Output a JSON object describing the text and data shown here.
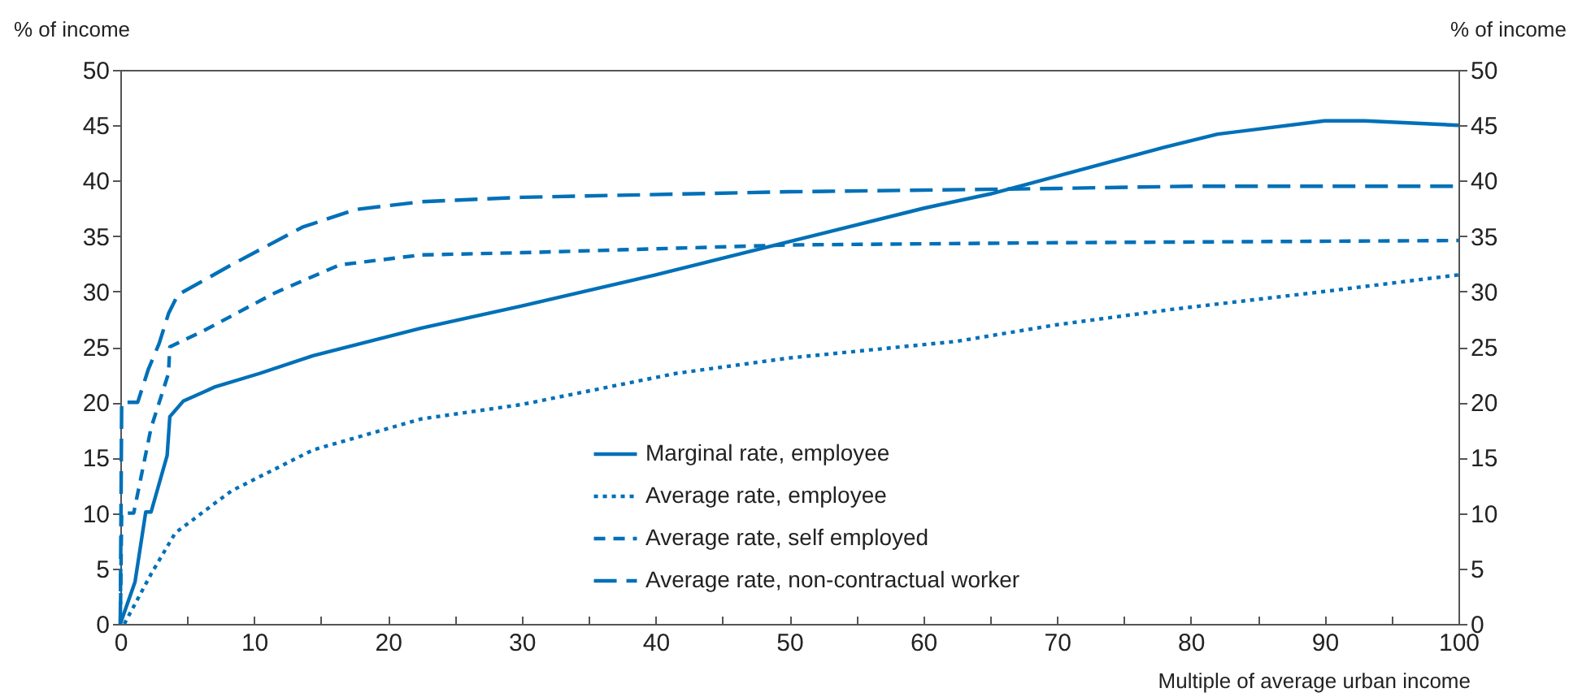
{
  "chart_data": {
    "type": "line",
    "ylabel": "% of income",
    "y2label": "% of income",
    "xlabel": "Multiple of average urban income",
    "xlim": [
      0,
      100
    ],
    "xticks": [
      0,
      {
        "value": 5,
        "label": null
      },
      10,
      {
        "value": 15,
        "label": null
      },
      20,
      {
        "value": 25,
        "label": null
      },
      30,
      {
        "value": 35,
        "label": null
      },
      40,
      {
        "value": 45,
        "label": null
      },
      50,
      {
        "value": 55,
        "label": null
      },
      60,
      {
        "value": 65,
        "label": null
      },
      70,
      {
        "value": 75,
        "label": null
      },
      80,
      {
        "value": 85,
        "label": null
      },
      90,
      {
        "value": 95,
        "label": null
      },
      100
    ],
    "ylim": [
      0,
      50
    ],
    "yticks": [
      0,
      5,
      10,
      15,
      20,
      25,
      30,
      35,
      40,
      45,
      50
    ],
    "y2lim": [
      0,
      50
    ],
    "y2ticks": [
      0,
      5,
      10,
      15,
      20,
      25,
      30,
      35,
      40,
      45,
      50
    ],
    "grid": false,
    "legend": "bottom",
    "marker": "none",
    "series": [
      {
        "name": "Marginal rate, employee",
        "color": "#0070b8",
        "line_style": "solid",
        "x": [
          0,
          1.1,
          1.9,
          2.3,
          3.5,
          3.7,
          4.7,
          7.1,
          10.4,
          14.4,
          22.5,
          30,
          40,
          50,
          60,
          65,
          70,
          78,
          82,
          90,
          93,
          100
        ],
        "values": [
          0,
          3.8,
          10.1,
          10.1,
          15.2,
          18.7,
          20.1,
          21.4,
          22.6,
          24.2,
          26.7,
          28.7,
          31.5,
          34.5,
          37.5,
          38.8,
          40.4,
          43,
          44.2,
          45.4,
          45.4,
          45
        ]
      },
      {
        "name": "Average rate, employee",
        "color": "#0070b8",
        "line_style": "dotted",
        "x": [
          0.3,
          2.3,
          4.1,
          8.3,
          14.4,
          22.5,
          30,
          41.5,
          50,
          62.5,
          70,
          78.7,
          90,
          100
        ],
        "values": [
          0,
          4.5,
          8.2,
          12,
          15.7,
          18.5,
          19.8,
          22.6,
          24,
          25.5,
          27,
          28.4,
          30,
          31.5
        ]
      },
      {
        "name": "Average rate, self employed",
        "color": "#0070b8",
        "line_style": "dashed",
        "x": [
          0,
          0.1,
          1,
          2.3,
          3.6,
          3.7,
          6.3,
          11.6,
          16.4,
          22.5,
          30,
          50,
          70,
          100
        ],
        "values": [
          0,
          10,
          10,
          17.7,
          22.6,
          25,
          26.5,
          29.9,
          32.4,
          33.3,
          33.5,
          34.2,
          34.4,
          34.6
        ]
      },
      {
        "name": "Average rate, non-contractual worker",
        "color": "#0070b8",
        "line_style": "dashed",
        "x": [
          0,
          0.1,
          1.3,
          2.1,
          2.9,
          3.6,
          4.3,
          8.3,
          13.6,
          17.6,
          22.5,
          30,
          50,
          70,
          80,
          100
        ],
        "values": [
          0,
          20,
          20,
          23,
          25.3,
          28,
          29.7,
          32.4,
          35.8,
          37.4,
          38.1,
          38.5,
          39,
          39.3,
          39.5,
          39.5
        ]
      }
    ]
  }
}
